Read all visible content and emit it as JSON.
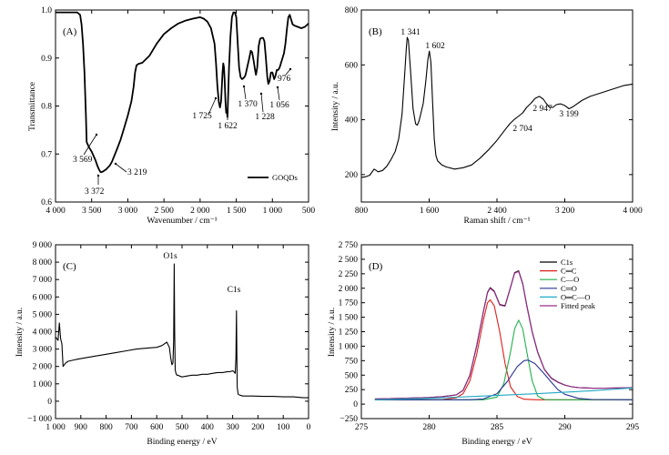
{
  "colors": {
    "black": "#000000",
    "red": "#e0201b",
    "green": "#22b14c",
    "blue": "#2a3593",
    "cyan": "#20a9c4",
    "purple": "#9b2d8c"
  },
  "chart_data": [
    {
      "id": "A",
      "type": "line",
      "panel_label": "(A)",
      "xlabel": "Wavenumber / cm⁻¹",
      "ylabel": "Transmittance",
      "xlim": [
        4000,
        500
      ],
      "ylim": [
        0.6,
        1.0
      ],
      "xticks": [
        4000,
        3500,
        3000,
        2500,
        2000,
        1500,
        1000,
        500
      ],
      "xtick_labels": [
        "4 000",
        "3 500",
        "3 000",
        "2 500",
        "2 000",
        "1 500",
        "1 000",
        "500"
      ],
      "yticks": [
        0.6,
        0.7,
        0.8,
        0.9,
        1.0
      ],
      "ytick_labels": [
        "0.6",
        "0.7",
        "0.8",
        "0.9",
        "1.0"
      ],
      "legend": [
        "GOQDs"
      ],
      "legend_position": "bottom-right",
      "annotations": [
        "3 569",
        "3 372",
        "3 219",
        "1 725",
        "1 622",
        "1 370",
        "1 228",
        "1 056",
        "976"
      ],
      "series": [
        {
          "name": "GOQDs",
          "x": [
            4000,
            3900,
            3800,
            3700,
            3660,
            3640,
            3620,
            3600,
            3580,
            3569,
            3540,
            3500,
            3450,
            3420,
            3400,
            3380,
            3372,
            3350,
            3300,
            3250,
            3219,
            3150,
            3100,
            3050,
            3000,
            2950,
            2920,
            2900,
            2880,
            2850,
            2800,
            2700,
            2600,
            2500,
            2400,
            2300,
            2200,
            2100,
            2000,
            1950,
            1900,
            1850,
            1800,
            1780,
            1760,
            1740,
            1725,
            1710,
            1700,
            1690,
            1680,
            1670,
            1660,
            1650,
            1640,
            1630,
            1622,
            1610,
            1600,
            1580,
            1560,
            1540,
            1520,
            1500,
            1480,
            1460,
            1440,
            1420,
            1400,
            1380,
            1370,
            1350,
            1320,
            1300,
            1280,
            1260,
            1240,
            1228,
            1210,
            1190,
            1170,
            1150,
            1130,
            1110,
            1090,
            1070,
            1056,
            1040,
            1020,
            1000,
            976,
            960,
            940,
            920,
            900,
            880,
            860,
            840,
            820,
            800,
            780,
            760,
            740,
            720,
            700,
            650,
            600,
            550,
            500
          ],
          "y": [
            0.995,
            0.995,
            0.995,
            0.995,
            0.99,
            0.97,
            0.93,
            0.87,
            0.78,
            0.725,
            0.715,
            0.705,
            0.688,
            0.675,
            0.668,
            0.663,
            0.662,
            0.663,
            0.668,
            0.676,
            0.684,
            0.71,
            0.73,
            0.755,
            0.78,
            0.81,
            0.84,
            0.87,
            0.885,
            0.888,
            0.89,
            0.905,
            0.93,
            0.95,
            0.962,
            0.972,
            0.978,
            0.982,
            0.985,
            0.982,
            0.976,
            0.962,
            0.93,
            0.89,
            0.84,
            0.807,
            0.797,
            0.81,
            0.84,
            0.87,
            0.889,
            0.88,
            0.85,
            0.81,
            0.786,
            0.79,
            0.777,
            0.83,
            0.88,
            0.945,
            0.985,
            0.995,
            0.995,
            0.985,
            0.93,
            0.88,
            0.86,
            0.856,
            0.858,
            0.862,
            0.866,
            0.88,
            0.9,
            0.915,
            0.912,
            0.895,
            0.875,
            0.865,
            0.88,
            0.925,
            0.94,
            0.942,
            0.942,
            0.935,
            0.9,
            0.86,
            0.846,
            0.852,
            0.87,
            0.87,
            0.856,
            0.862,
            0.875,
            0.875,
            0.88,
            0.89,
            0.9,
            0.91,
            0.93,
            0.96,
            0.985,
            0.99,
            0.98,
            0.97,
            0.968,
            0.965,
            0.962,
            0.965,
            0.972
          ]
        }
      ]
    },
    {
      "id": "B",
      "type": "line",
      "panel_label": "(B)",
      "xlabel": "Raman shift / cm⁻¹",
      "ylabel": "Intensity / a.u.",
      "xlim": [
        800,
        4000
      ],
      "ylim": [
        100,
        800
      ],
      "xticks": [
        800,
        1600,
        2400,
        3200,
        4000
      ],
      "xtick_labels": [
        "800",
        "1 600",
        "2 400",
        "3 200",
        "4 000"
      ],
      "yticks": [
        200,
        400,
        600,
        800
      ],
      "ytick_labels": [
        "200",
        "400",
        "600",
        "800"
      ],
      "annotations": [
        "1 341",
        "1 602",
        "2 704",
        "2 947",
        "3 199"
      ],
      "series": [
        {
          "name": "",
          "x": [
            800,
            850,
            900,
            950,
            1000,
            1050,
            1100,
            1150,
            1200,
            1240,
            1280,
            1310,
            1330,
            1341,
            1355,
            1380,
            1410,
            1440,
            1460,
            1480,
            1500,
            1530,
            1560,
            1585,
            1602,
            1620,
            1640,
            1660,
            1680,
            1700,
            1750,
            1800,
            1900,
            2000,
            2100,
            2200,
            2300,
            2400,
            2500,
            2550,
            2600,
            2650,
            2704,
            2750,
            2800,
            2850,
            2900,
            2947,
            2980,
            3020,
            3060,
            3100,
            3150,
            3199,
            3250,
            3300,
            3400,
            3500,
            3600,
            3700,
            3800,
            3900,
            4000
          ],
          "y": [
            190,
            192,
            198,
            220,
            210,
            215,
            230,
            255,
            285,
            330,
            420,
            560,
            660,
            700,
            690,
            580,
            440,
            385,
            380,
            395,
            420,
            460,
            540,
            620,
            650,
            610,
            470,
            330,
            270,
            250,
            235,
            228,
            220,
            225,
            235,
            260,
            290,
            325,
            365,
            385,
            400,
            412,
            425,
            445,
            460,
            478,
            485,
            475,
            460,
            445,
            445,
            455,
            458,
            452,
            440,
            448,
            470,
            485,
            495,
            505,
            515,
            525,
            530
          ]
        }
      ]
    },
    {
      "id": "C",
      "type": "line",
      "panel_label": "(C)",
      "xlabel": "Binding energy / eV",
      "ylabel": "Intensity / a.u.",
      "xlim": [
        1000,
        0
      ],
      "ylim": [
        -1000,
        9000
      ],
      "xticks": [
        1000,
        900,
        800,
        700,
        600,
        500,
        400,
        300,
        200,
        100,
        0
      ],
      "xtick_labels": [
        "1 000",
        "900",
        "800",
        "700",
        "600",
        "500",
        "400",
        "300",
        "200",
        "100",
        "0"
      ],
      "yticks": [
        -1000,
        0,
        1000,
        2000,
        3000,
        4000,
        5000,
        6000,
        7000,
        8000,
        9000
      ],
      "ytick_labels": [
        "−1 000",
        "0",
        "1 000",
        "2 000",
        "3 000",
        "4 000",
        "5 000",
        "6 000",
        "7 000",
        "8 000",
        "9 000"
      ],
      "annotations": [
        "O1s",
        "C1s"
      ],
      "series": [
        {
          "name": "",
          "x": [
            1000,
            995,
            990,
            985,
            980,
            975,
            970,
            965,
            960,
            950,
            920,
            880,
            840,
            800,
            760,
            720,
            680,
            640,
            600,
            580,
            560,
            550,
            545,
            540,
            536,
            533,
            531,
            529,
            527,
            524,
            520,
            515,
            510,
            500,
            480,
            460,
            440,
            420,
            400,
            380,
            360,
            340,
            320,
            310,
            300,
            295,
            290,
            287,
            285,
            284,
            282,
            278,
            272,
            260,
            220,
            180,
            140,
            100,
            60,
            20,
            0
          ],
          "y": [
            3700,
            3600,
            3500,
            4500,
            3600,
            3300,
            2000,
            2100,
            2200,
            2300,
            2400,
            2500,
            2600,
            2700,
            2800,
            2900,
            3000,
            3050,
            3100,
            3200,
            3400,
            3100,
            2500,
            2100,
            2200,
            3500,
            7900,
            4000,
            1800,
            1600,
            1500,
            1500,
            1450,
            1400,
            1450,
            1500,
            1500,
            1550,
            1550,
            1600,
            1650,
            1650,
            1700,
            1700,
            1750,
            1700,
            1600,
            2500,
            5200,
            4000,
            800,
            400,
            350,
            300,
            300,
            280,
            280,
            250,
            250,
            200,
            200
          ]
        }
      ]
    },
    {
      "id": "D",
      "type": "line",
      "panel_label": "(D)",
      "xlabel": "Binding energy / eV",
      "ylabel": "Intensity / a.u.",
      "xlim": [
        275,
        295
      ],
      "ylim": [
        -250,
        2750
      ],
      "xticks": [
        275,
        280,
        285,
        290,
        295
      ],
      "xtick_labels": [
        "275",
        "280",
        "285",
        "290",
        "295"
      ],
      "yticks": [
        -250,
        0,
        250,
        500,
        750,
        1000,
        1250,
        1500,
        1750,
        2000,
        2250,
        2500,
        2750
      ],
      "ytick_labels": [
        "−250",
        "0",
        "250",
        "500",
        "750",
        "1 000",
        "1 250",
        "1 500",
        "1 750",
        "2 000",
        "2 250",
        "2 500",
        "2 750"
      ],
      "legend": [
        "C1s",
        "C═C",
        "C—O",
        "C═O",
        "O═C—O",
        "Fitted peak"
      ],
      "legend_position": "top-right",
      "series": [
        {
          "name": "C1s",
          "color": "#000000",
          "x": [
            276,
            278,
            280,
            281,
            282,
            282.5,
            283,
            283.5,
            284,
            284.3,
            284.5,
            284.8,
            285.2,
            285.6,
            286,
            286.3,
            286.6,
            286.9,
            287.2,
            287.6,
            288,
            288.5,
            289,
            289.5,
            290,
            290.5,
            291,
            292,
            293,
            294,
            295
          ],
          "y": [
            90,
            100,
            115,
            130,
            160,
            240,
            500,
            1000,
            1600,
            1930,
            2010,
            1950,
            1720,
            1700,
            2020,
            2270,
            2300,
            2080,
            1700,
            1250,
            900,
            600,
            450,
            380,
            330,
            300,
            285,
            275,
            275,
            280,
            285
          ]
        },
        {
          "name": "Fitted peak",
          "color": "#9b2d8c",
          "x": [
            276,
            278,
            280,
            281,
            282,
            282.5,
            283,
            283.5,
            284,
            284.3,
            284.5,
            284.8,
            285.2,
            285.6,
            286,
            286.3,
            286.6,
            286.9,
            287.2,
            287.6,
            288,
            288.5,
            289,
            289.5,
            290,
            290.5,
            291,
            292,
            293,
            294,
            295
          ],
          "y": [
            90,
            100,
            115,
            128,
            158,
            235,
            490,
            990,
            1590,
            1920,
            2000,
            1940,
            1710,
            1690,
            2010,
            2260,
            2290,
            2070,
            1690,
            1240,
            890,
            595,
            445,
            375,
            328,
            300,
            285,
            275,
            275,
            280,
            285
          ]
        },
        {
          "name": "C═C",
          "color": "#e0201b",
          "x": [
            276,
            280,
            281,
            282,
            282.5,
            283,
            283.5,
            284,
            284.3,
            284.5,
            284.8,
            285.2,
            285.6,
            286,
            286.5,
            287,
            288,
            290,
            295
          ],
          "y": [
            75,
            75,
            80,
            110,
            180,
            400,
            850,
            1450,
            1750,
            1800,
            1700,
            1250,
            700,
            300,
            130,
            85,
            75,
            75,
            75
          ]
        },
        {
          "name": "C—O",
          "color": "#22b14c",
          "x": [
            276,
            284,
            285,
            285.5,
            286,
            286.3,
            286.6,
            286.9,
            287.2,
            287.6,
            288,
            288.5,
            289,
            295
          ],
          "y": [
            75,
            75,
            120,
            350,
            900,
            1300,
            1450,
            1300,
            900,
            400,
            140,
            80,
            75,
            75
          ]
        },
        {
          "name": "C═O",
          "color": "#2a3593",
          "x": [
            276,
            283,
            284,
            285,
            285.8,
            286.5,
            287,
            287.3,
            287.8,
            288.5,
            289,
            289.5,
            290,
            291,
            292,
            295
          ],
          "y": [
            75,
            75,
            90,
            180,
            400,
            650,
            750,
            760,
            700,
            520,
            380,
            250,
            170,
            100,
            80,
            75
          ]
        },
        {
          "name": "O═C—O",
          "color": "#20a9c4",
          "x": [
            276,
            280,
            284,
            288,
            292,
            295
          ],
          "y": [
            75,
            100,
            140,
            180,
            230,
            280
          ]
        }
      ]
    }
  ]
}
